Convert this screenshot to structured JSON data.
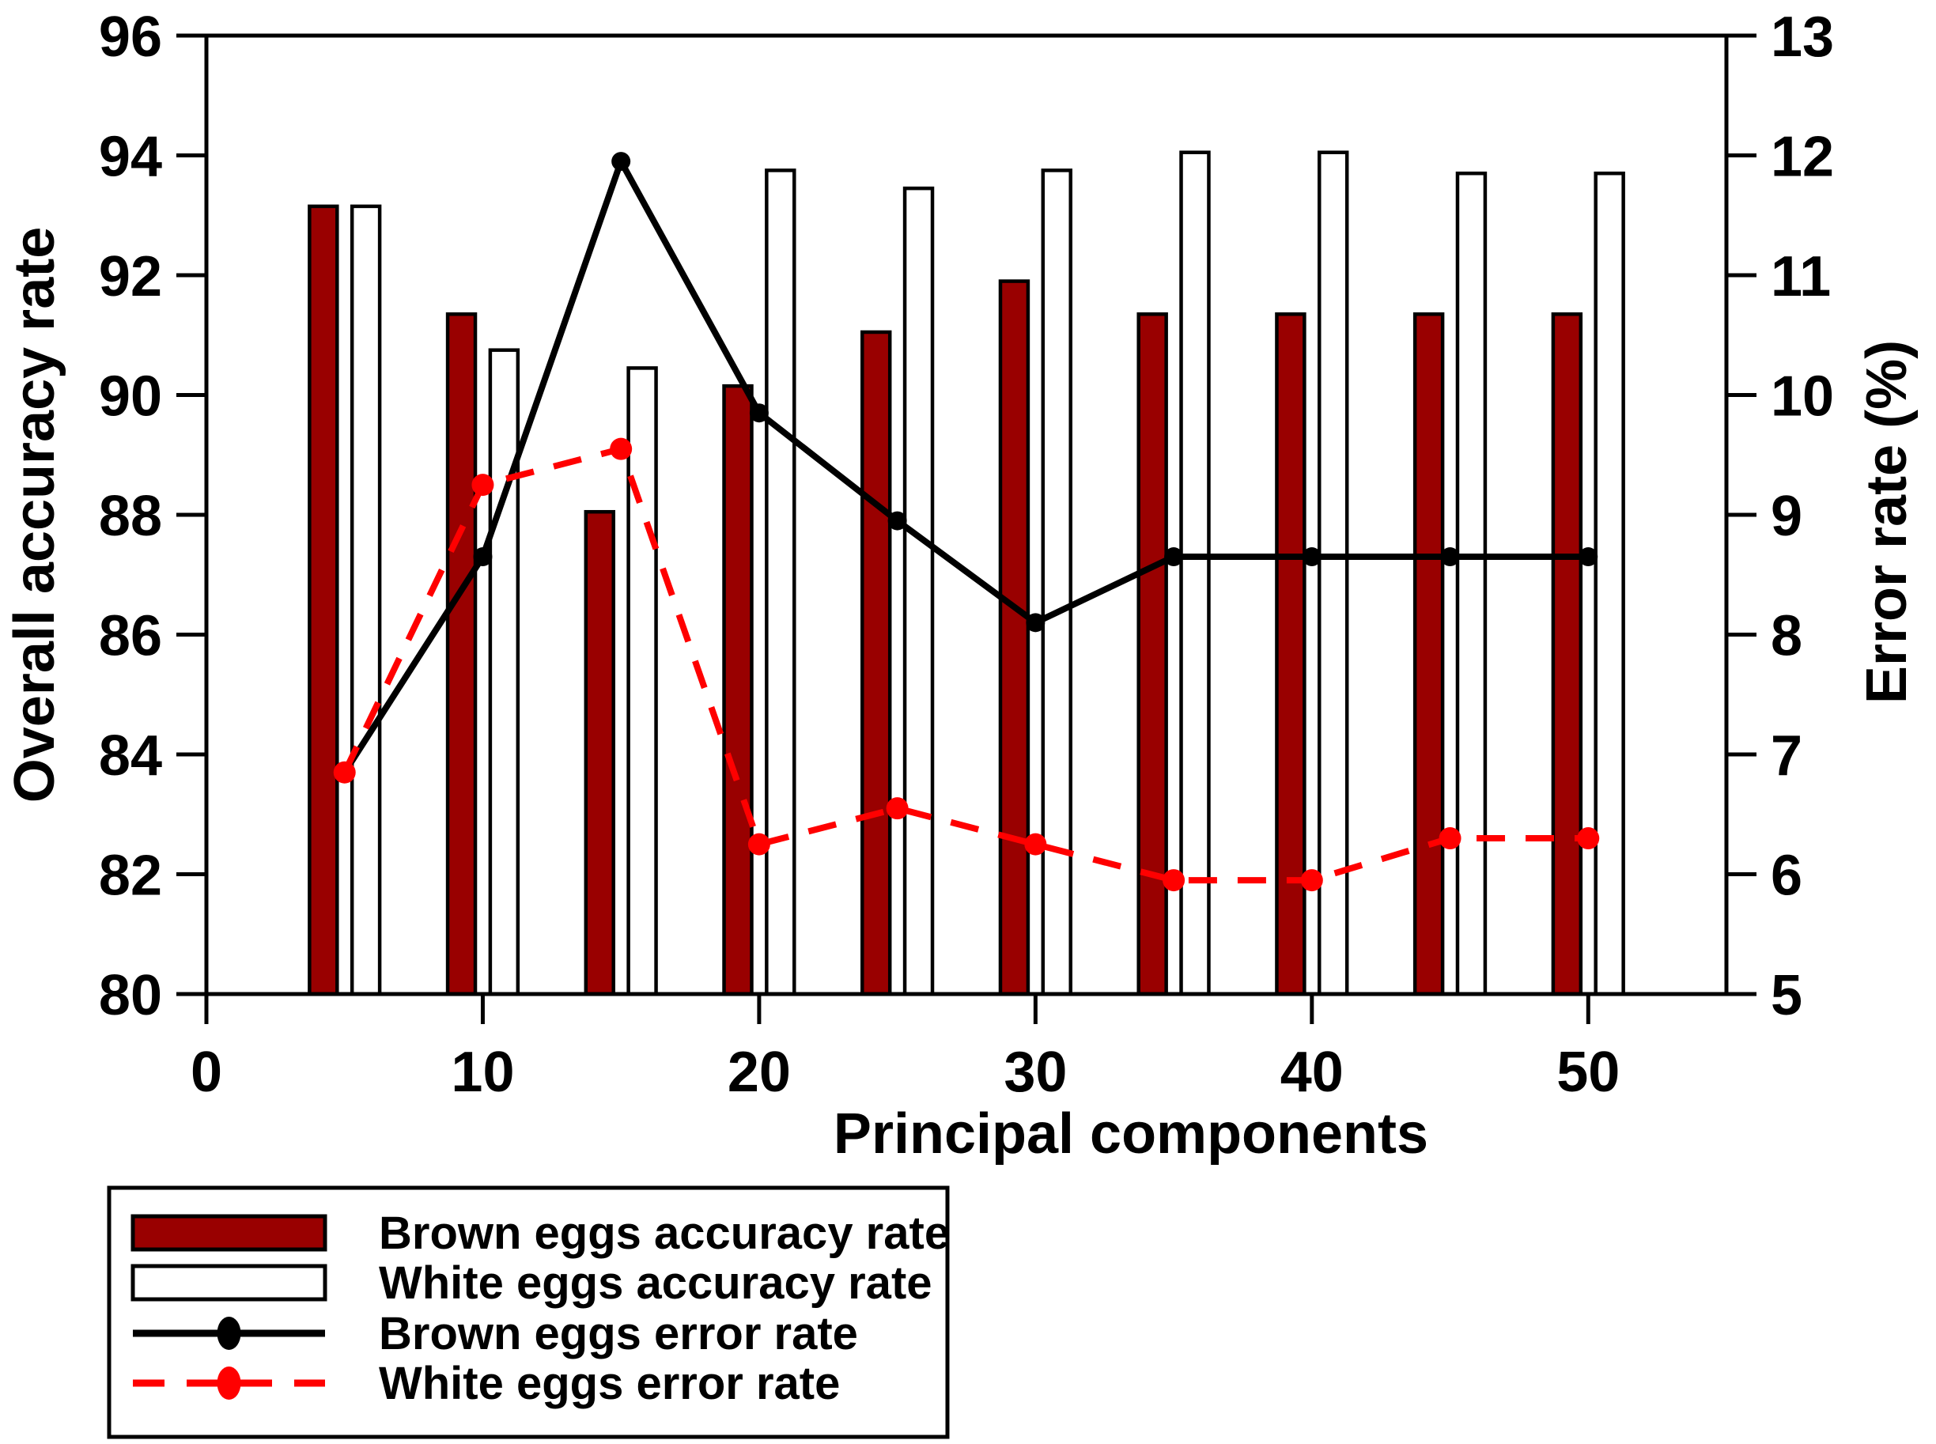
{
  "figure": {
    "background": "#ffffff",
    "x_axis_title": "Principal components",
    "left_axis_title": "Overall accuracy rate",
    "right_axis_title": "Error rate (%)"
  },
  "chart_data": {
    "type": "bar+line (dual axis)",
    "grid": false,
    "legend_position": "bottom-left box",
    "categories": [
      5,
      10,
      15,
      20,
      25,
      30,
      35,
      40,
      45,
      50
    ],
    "axes": {
      "x": {
        "label": "Principal components",
        "min": 0,
        "max": 55,
        "tick_values": [
          0,
          10,
          20,
          30,
          40,
          50
        ]
      },
      "left": {
        "label": "Overall accuracy rate",
        "min": 80,
        "max": 96,
        "tick_values": [
          80,
          82,
          84,
          86,
          88,
          90,
          92,
          94,
          96
        ]
      },
      "right": {
        "label": "Error rate (%)",
        "min": 5,
        "max": 13,
        "tick_values": [
          5,
          6,
          7,
          8,
          9,
          10,
          11,
          12,
          13
        ]
      }
    },
    "series": [
      {
        "name": "Brown eggs accuracy rate",
        "type": "bar",
        "axis": "left",
        "fill": "#990000",
        "stroke": "#000000",
        "values": [
          93.15,
          91.35,
          88.05,
          90.15,
          91.05,
          91.9,
          91.35,
          91.35,
          91.35,
          91.35
        ]
      },
      {
        "name": "White eggs accuracy rate",
        "type": "bar",
        "axis": "left",
        "fill": "#ffffff",
        "stroke": "#000000",
        "values": [
          93.15,
          90.75,
          90.45,
          93.75,
          93.45,
          93.75,
          94.05,
          94.05,
          93.7,
          93.7
        ]
      },
      {
        "name": "Brown eggs error rate",
        "type": "line",
        "axis": "right",
        "color": "#000000",
        "dashed": false,
        "marker_radius": 12,
        "values": [
          6.85,
          8.65,
          11.95,
          9.85,
          8.95,
          8.1,
          8.65,
          8.65,
          8.65,
          8.65
        ]
      },
      {
        "name": "White eggs error rate",
        "type": "line",
        "axis": "right",
        "color": "#ff0000",
        "dashed": true,
        "marker_radius": 14,
        "values": [
          6.85,
          9.25,
          9.55,
          6.25,
          6.55,
          6.25,
          5.95,
          5.95,
          6.3,
          6.3
        ]
      }
    ],
    "legend": [
      {
        "label": "Brown eggs accuracy rate",
        "swatch": "bar-filled",
        "color": "#990000"
      },
      {
        "label": "White eggs accuracy rate",
        "swatch": "bar-outline",
        "color": "#ffffff"
      },
      {
        "label": "Brown eggs error rate",
        "swatch": "line-solid",
        "color": "#000000"
      },
      {
        "label": "White eggs error rate",
        "swatch": "line-dashed",
        "color": "#ff0000"
      }
    ],
    "colors": {
      "brown_bar": "#990000",
      "white_bar": "#ffffff",
      "black_line": "#000000",
      "red_line": "#ff0000",
      "axis": "#000000"
    }
  }
}
